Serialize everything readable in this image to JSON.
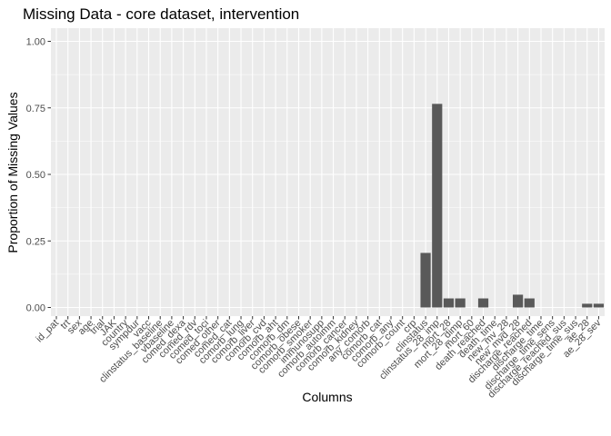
{
  "chart_data": {
    "type": "bar",
    "title": "Missing Data - core dataset, intervention",
    "xlabel": "Columns",
    "ylabel": "Proportion of Missing Values",
    "ylim": [
      0,
      1
    ],
    "y_ticks": [
      "0.00",
      "0.25",
      "0.50",
      "0.75",
      "1.00"
    ],
    "y_tick_values": [
      0,
      0.25,
      0.5,
      0.75,
      1.0
    ],
    "grid": true,
    "bar_color": "#595959",
    "panel_color": "#EBEBEB",
    "categories": [
      "id_pat",
      "trt",
      "sex",
      "age",
      "trial",
      "JAK",
      "country",
      "sympdur",
      "vacc",
      "clinstatus_baseline",
      "vbaseline",
      "comed_dexa",
      "comed_rdv",
      "comed_toci",
      "comed_other",
      "comed_cat",
      "comorb_lung",
      "comorb_liver",
      "comorb_cvd",
      "comorb_aht",
      "comorb_dm",
      "comorb_obese",
      "comorb_smoker",
      "immunosupp",
      "comorb_autoimm",
      "comorb_cancer",
      "comorb_kidney",
      "any_comorb",
      "comorb_cat",
      "comorb_any",
      "comorb_count",
      "crp",
      "clinstatus",
      "clinstatus_28_imp",
      "mort_28",
      "mort_28_dimp",
      "mort_60",
      "death_reached",
      "death_time",
      "new_mv_28",
      "new_mvd_28",
      "discharge_reached",
      "discharge_time",
      "discharge_time_sens",
      "discharge_reached_sus",
      "discharge_time_sus",
      "ae_28",
      "ae_28_sev"
    ],
    "values": [
      0,
      0,
      0,
      0,
      0,
      0,
      0,
      0,
      0,
      0,
      0,
      0,
      0,
      0,
      0,
      0,
      0,
      0,
      0,
      0,
      0,
      0,
      0,
      0,
      0,
      0,
      0,
      0,
      0,
      0,
      0,
      0,
      0.205,
      0.765,
      0.034,
      0.034,
      0,
      0.034,
      0,
      0,
      0.048,
      0.034,
      0,
      0,
      0,
      0,
      0.014,
      0.014
    ]
  }
}
